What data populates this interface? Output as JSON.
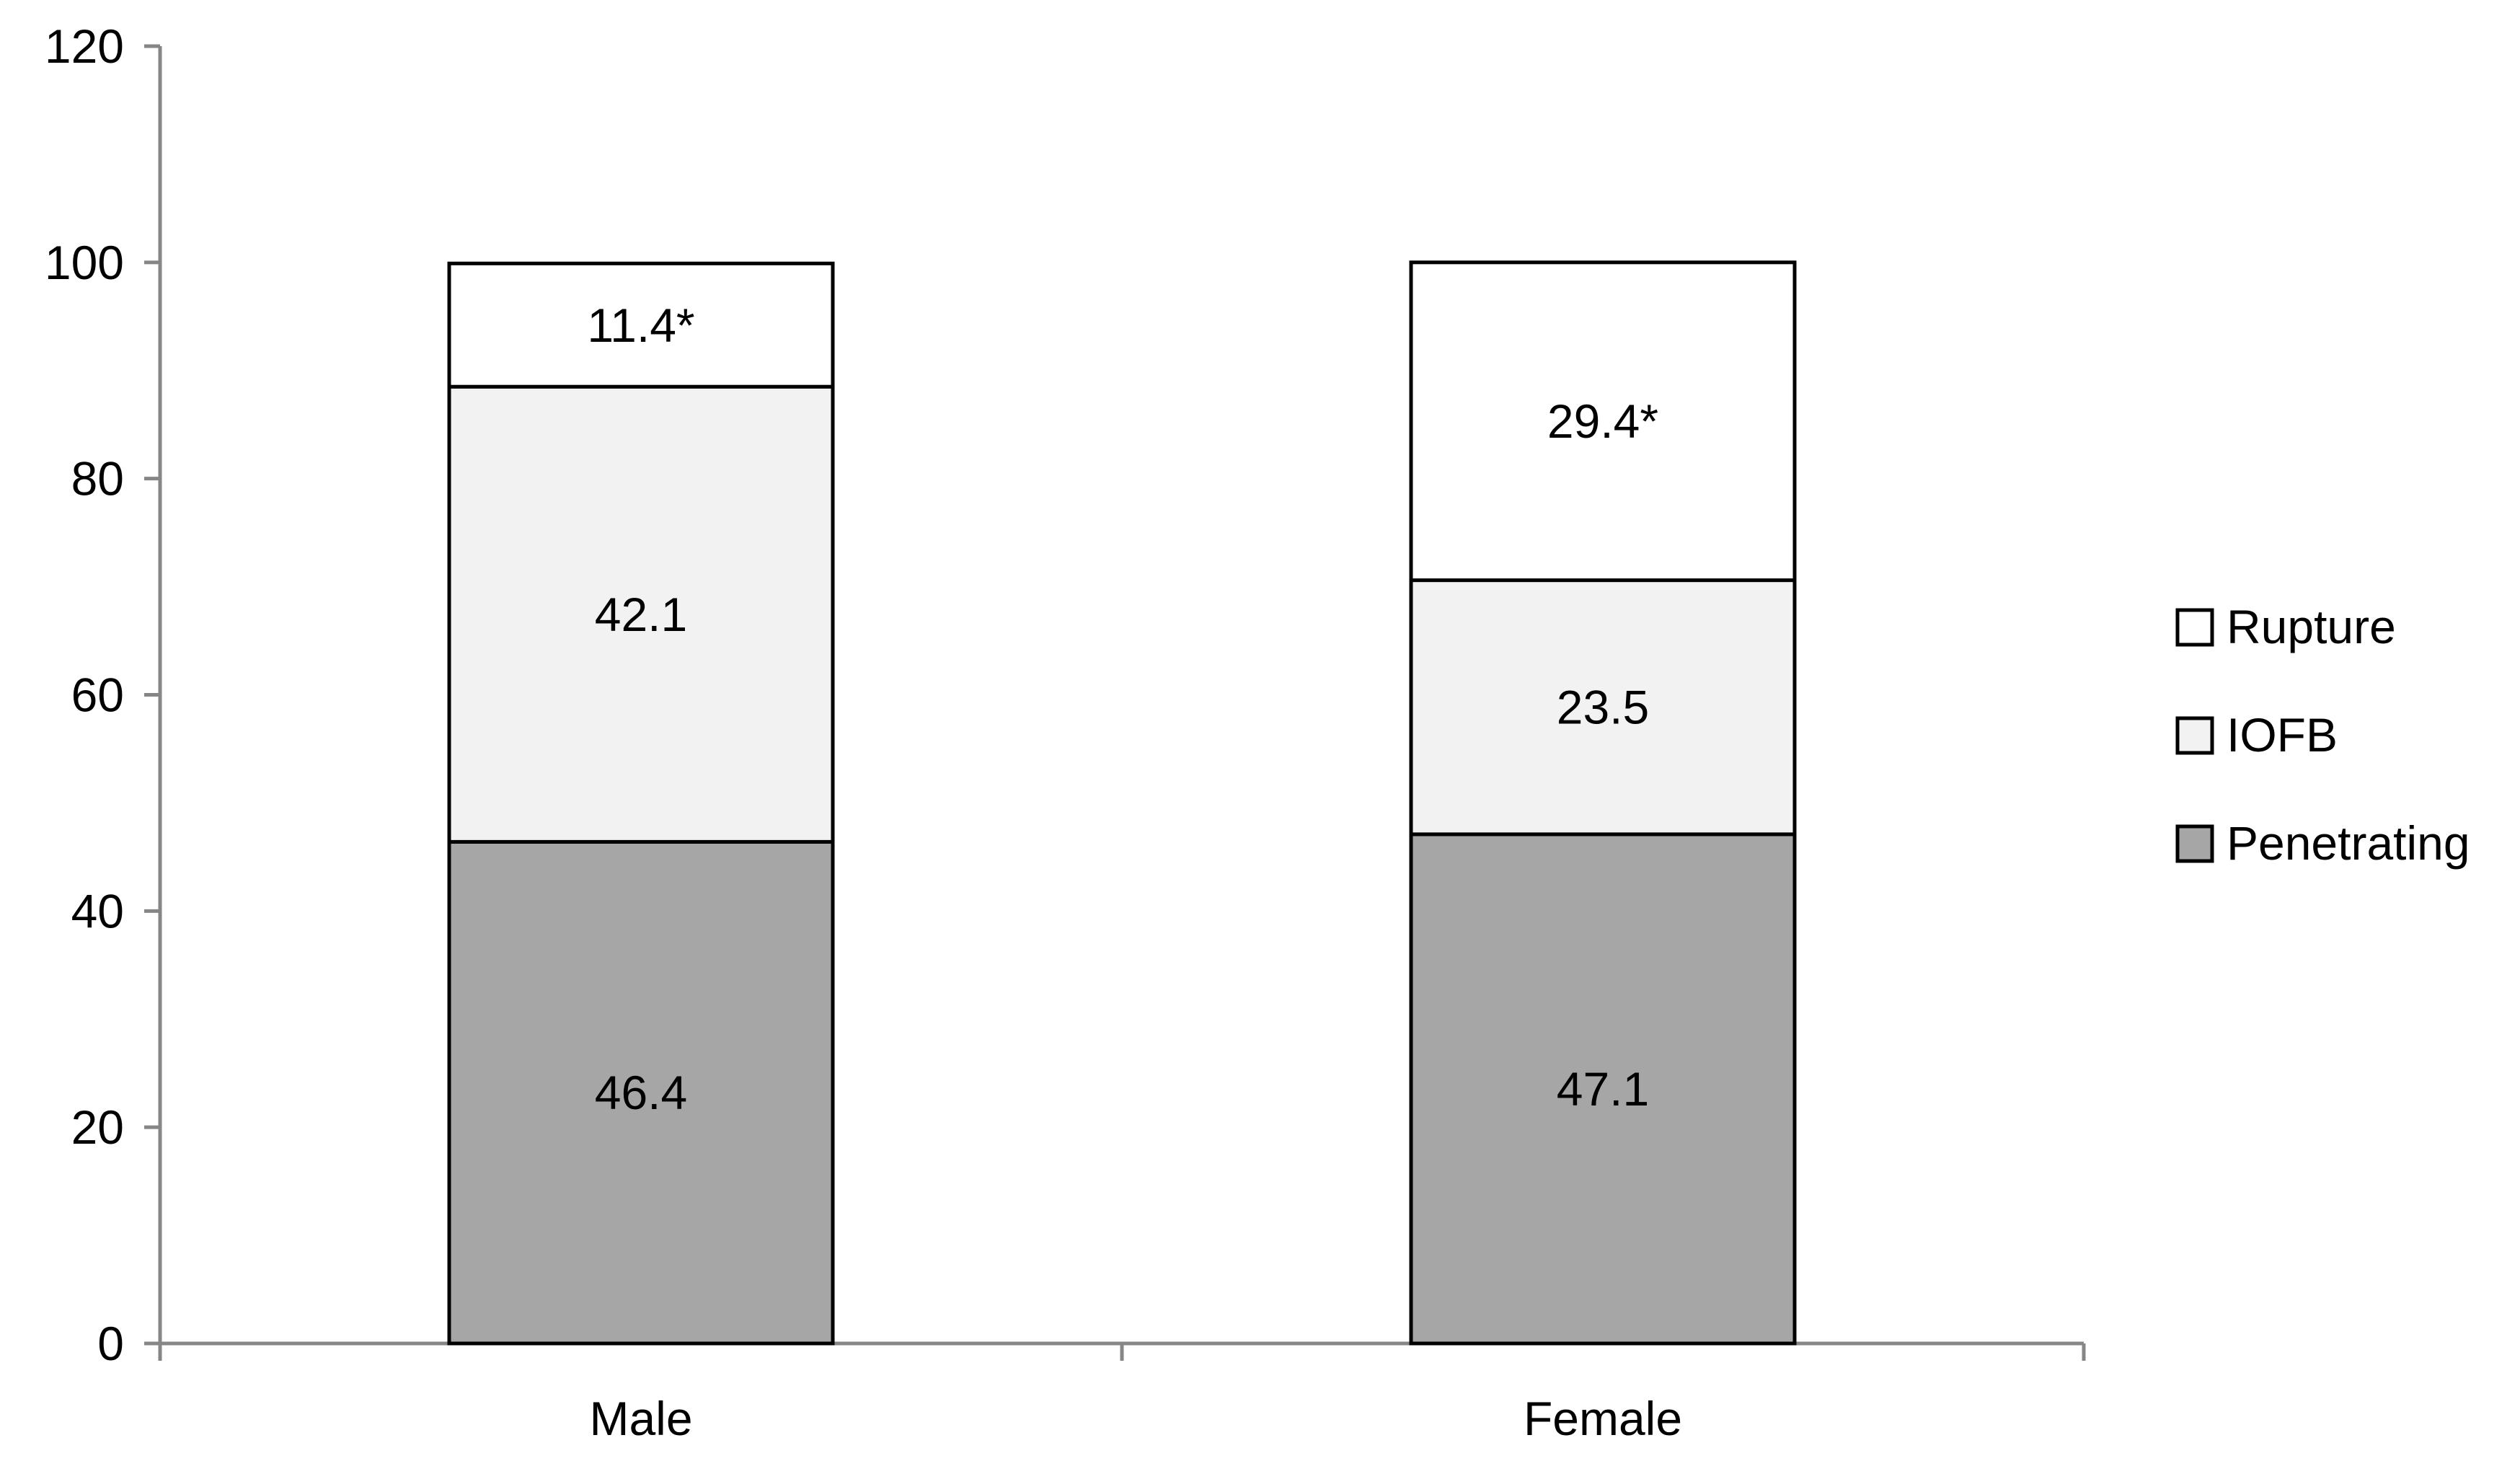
{
  "chart_data": {
    "type": "bar",
    "stacked": true,
    "categories": [
      "Male",
      "Female"
    ],
    "series": [
      {
        "name": "Penetrating",
        "values": [
          46.4,
          47.1
        ],
        "labels": [
          "46.4",
          "47.1"
        ],
        "color": "#a6a6a6"
      },
      {
        "name": "IOFB",
        "values": [
          42.1,
          23.5
        ],
        "labels": [
          "42.1",
          "23.5"
        ],
        "color": "#f2f2f2"
      },
      {
        "name": "Rupture",
        "values": [
          11.4,
          29.4
        ],
        "labels": [
          "11.4*",
          "29.4*"
        ],
        "color": "#ffffff"
      }
    ],
    "title": "",
    "xlabel": "",
    "ylabel": "",
    "ylim": [
      0,
      120
    ],
    "yticks": [
      0,
      20,
      40,
      60,
      80,
      100,
      120
    ],
    "grid": false,
    "legend": {
      "placement": "right",
      "order": [
        "Rupture",
        "IOFB",
        "Penetrating"
      ]
    }
  }
}
